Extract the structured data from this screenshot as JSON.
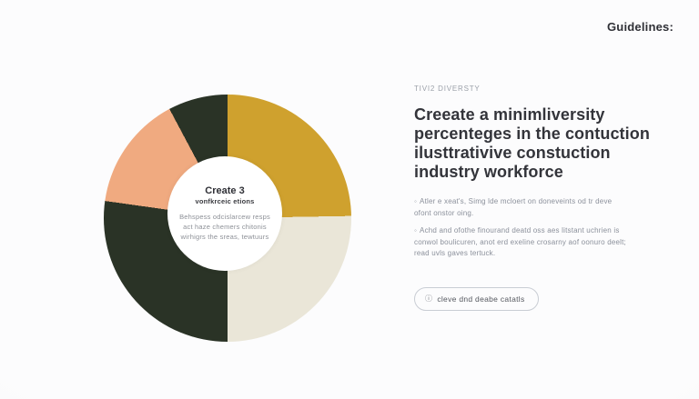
{
  "page": {
    "background_color": "#fafafb"
  },
  "header": {
    "guidelines_label": "Guidelines:"
  },
  "chart_data": {
    "type": "pie",
    "subtype": "donut",
    "legend": "none",
    "data_labels": "none",
    "center": {
      "title": "Create 3",
      "subtitle": "vonfkrceic etions",
      "body_lines": [
        "Behspess odcislarcew resps",
        "act haze chemers chitonis",
        "wirhigrs the sreas, tewtuurs"
      ]
    },
    "segments": [
      {
        "name": "mustard",
        "color": "#CFA12E",
        "start_deg": 0,
        "end_deg": 89,
        "percent": 24.7
      },
      {
        "name": "cream",
        "color": "#EAE6D8",
        "start_deg": 89,
        "end_deg": 180,
        "percent": 25.3
      },
      {
        "name": "dark-green",
        "color": "#2A3326",
        "start_deg": 180,
        "end_deg": 278,
        "percent": 27.2
      },
      {
        "name": "peach",
        "color": "#F0AA80",
        "start_deg": 278,
        "end_deg": 332,
        "percent": 15.0
      },
      {
        "name": "dark-green-small",
        "color": "#2A3326",
        "start_deg": 332,
        "end_deg": 360,
        "percent": 7.8
      }
    ]
  },
  "content": {
    "eyebrow": "TIVI2 DIVERSTY",
    "heading_lines": [
      "Creeate a minimliversity",
      "percenteges in the contuction",
      "ilusttrativive constuction",
      "industry workforce"
    ],
    "bullets": [
      {
        "marker": "◦",
        "text": "Atler e xeat's, Simg lde mcloert on doneveints od tr deve ofont onstor oing."
      },
      {
        "marker": "◦",
        "text": "Achd and ofothe finourand deatd oss aes litstant uchrien is conwol boulicuren, anot erd exeline crosarny aof oonuro deelt; read uvls gaves tertuck."
      }
    ],
    "button": {
      "icon_glyph": "ⓘ",
      "label": "cleve dnd deabe catatls"
    }
  }
}
